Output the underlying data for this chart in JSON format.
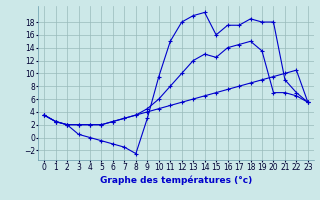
{
  "xlabel": "Graphe des températures (°c)",
  "background_color": "#cce8e8",
  "grid_color": "#99bbbb",
  "line_color": "#0000cc",
  "x_ticks": [
    0,
    1,
    2,
    3,
    4,
    5,
    6,
    7,
    8,
    9,
    10,
    11,
    12,
    13,
    14,
    15,
    16,
    17,
    18,
    19,
    20,
    21,
    22,
    23
  ],
  "y_ticks": [
    -2,
    0,
    2,
    4,
    6,
    8,
    10,
    12,
    14,
    16,
    18
  ],
  "ylim": [
    -3.5,
    20.5
  ],
  "xlim": [
    -0.5,
    23.5
  ],
  "series": [
    {
      "x": [
        0,
        1,
        2,
        3,
        4,
        5,
        6,
        7,
        8,
        9,
        10,
        11,
        12,
        13,
        14,
        15,
        16,
        17,
        18,
        19,
        20,
        21,
        22,
        23
      ],
      "y": [
        3.5,
        2.5,
        2.0,
        0.5,
        0.0,
        -0.5,
        -1.0,
        -1.5,
        -2.5,
        3.0,
        9.5,
        15.0,
        18.0,
        19.0,
        19.5,
        16.0,
        17.5,
        17.5,
        18.5,
        18.0,
        18.0,
        9.0,
        7.0,
        5.5
      ]
    },
    {
      "x": [
        0,
        1,
        2,
        3,
        4,
        5,
        6,
        7,
        8,
        9,
        10,
        11,
        12,
        13,
        14,
        15,
        16,
        17,
        18,
        19,
        20,
        21,
        22,
        23
      ],
      "y": [
        3.5,
        2.5,
        2.0,
        2.0,
        2.0,
        2.0,
        2.5,
        3.0,
        3.5,
        4.0,
        4.5,
        5.0,
        5.5,
        6.0,
        6.5,
        7.0,
        7.5,
        8.0,
        8.5,
        9.0,
        9.5,
        10.0,
        10.5,
        5.5
      ]
    },
    {
      "x": [
        0,
        1,
        2,
        3,
        4,
        5,
        6,
        7,
        8,
        9,
        10,
        11,
        12,
        13,
        14,
        15,
        16,
        17,
        18,
        19,
        20,
        21,
        22,
        23
      ],
      "y": [
        3.5,
        2.5,
        2.0,
        2.0,
        2.0,
        2.0,
        2.5,
        3.0,
        3.5,
        4.5,
        6.0,
        8.0,
        10.0,
        12.0,
        13.0,
        12.5,
        14.0,
        14.5,
        15.0,
        13.5,
        7.0,
        7.0,
        6.5,
        5.5
      ]
    }
  ]
}
